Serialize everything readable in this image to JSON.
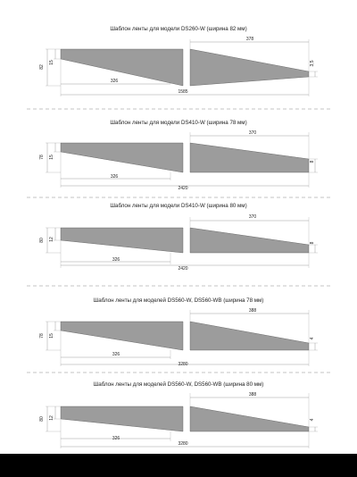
{
  "templates": [
    {
      "title": "Шаблон ленты для модели DS260-W (ширина 82 мм)",
      "width_label": "82",
      "left_height": "15",
      "left_length": "326",
      "total_length": "1585",
      "right_length": "378",
      "right_height": "3,5"
    },
    {
      "title": "Шаблон ленты для модели DS410-W (ширина 78 мм)",
      "width_label": "78",
      "left_height": "15",
      "left_length": "326",
      "total_length": "2420",
      "right_length": "370",
      "right_height": "8"
    },
    {
      "title": "Шаблон ленты для модели DS410-W (ширина 80 мм)",
      "width_label": "80",
      "left_height": "12",
      "left_length": "326",
      "total_length": "2420",
      "right_length": "370",
      "right_height": "8"
    },
    {
      "title": "Шаблон ленты для моделей DS560-W, DS560-WB (ширина 78 мм)",
      "width_label": "78",
      "left_height": "15",
      "left_length": "326",
      "total_length": "3280",
      "right_length": "388",
      "right_height": "4"
    },
    {
      "title": "Шаблон ленты для моделей DS560-W, DS560-WB (ширина 80 мм)",
      "width_label": "80",
      "left_height": "12",
      "left_length": "326",
      "total_length": "3280",
      "right_length": "388",
      "right_height": "4"
    }
  ],
  "colors": {
    "page": "#ffffff",
    "strip_fill": "#9c9c9c",
    "background": "#000000"
  }
}
